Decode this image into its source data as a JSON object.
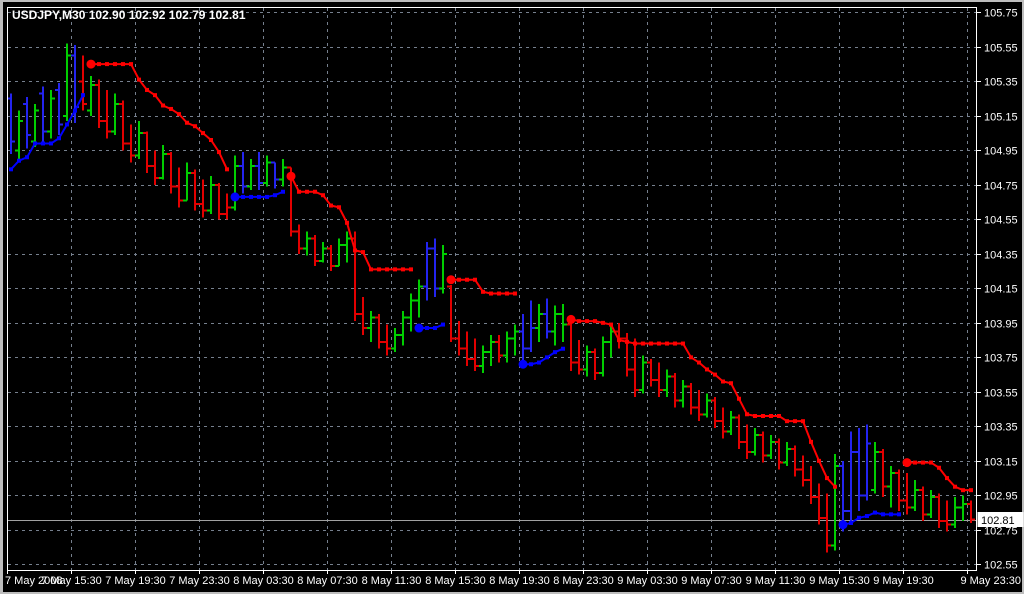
{
  "window": {
    "title_overlay": "USDJPY,M30  102.90 102.92 102.79 102.81"
  },
  "chart_data": {
    "type": "ohlc-bar-chart",
    "symbol": "USDJPY",
    "timeframe": "M30",
    "last_quote": {
      "open": "102.90",
      "high": "102.92",
      "low": "102.79",
      "close": "102.81"
    },
    "current_price": "102.81",
    "price_axis": {
      "max": 105.75,
      "min": 102.55,
      "step": 0.2,
      "labels": [
        "105.75",
        "105.55",
        "105.35",
        "105.15",
        "104.95",
        "104.75",
        "104.55",
        "104.35",
        "104.15",
        "103.95",
        "103.75",
        "103.55",
        "103.35",
        "103.15",
        "102.95",
        "102.75",
        "102.55"
      ]
    },
    "time_axis": {
      "bars_per_label": 8,
      "labels": [
        "7 May 2008",
        "7 May 15:30",
        "7 May 19:30",
        "7 May 23:30",
        "8 May 03:30",
        "8 May 07:30",
        "8 May 11:30",
        "8 May 15:30",
        "8 May 19:30",
        "8 May 23:30",
        "9 May 03:30",
        "9 May 07:30",
        "9 May 11:30",
        "9 May 15:30",
        "9 May 19:30",
        "9 May 23:30"
      ]
    },
    "palette": {
      "up": "#00CE00",
      "down": "#E30000",
      "down_alt": "#2424F0",
      "indicator_sell": "#FF0000",
      "indicator_buy": "#0000FF",
      "grid": "#76808E",
      "frame": "#FFFFFF",
      "text": "#FFFFFF",
      "bg": "#000000",
      "window_edge": "#BDBDBD",
      "price_line": "#A0A0A0",
      "price_box_bg": "#FFFFFF",
      "price_box_text": "#000000"
    },
    "bars": [
      [
        105.25,
        105.28,
        104.93,
        105.0,
        "b"
      ],
      [
        104.95,
        105.18,
        104.9,
        105.12,
        "g"
      ],
      [
        105.22,
        105.26,
        104.96,
        105.04,
        "b"
      ],
      [
        105.0,
        105.22,
        104.97,
        105.18,
        "g"
      ],
      [
        105.28,
        105.32,
        105.0,
        105.06,
        "b"
      ],
      [
        105.06,
        105.3,
        105.02,
        105.25,
        "g"
      ],
      [
        105.3,
        105.34,
        105.04,
        105.1,
        "b"
      ],
      [
        105.15,
        105.57,
        105.12,
        105.5,
        "g"
      ],
      [
        105.5,
        105.56,
        105.11,
        105.2,
        "b"
      ],
      [
        105.35,
        105.5,
        105.18,
        105.22,
        "r"
      ],
      [
        105.18,
        105.38,
        105.15,
        105.33,
        "g"
      ],
      [
        105.33,
        105.36,
        105.08,
        105.12,
        "r"
      ],
      [
        105.12,
        105.3,
        105.02,
        105.06,
        "r"
      ],
      [
        105.06,
        105.28,
        105.04,
        105.22,
        "g"
      ],
      [
        105.22,
        105.24,
        104.95,
        104.99,
        "r"
      ],
      [
        104.99,
        105.1,
        104.88,
        104.92,
        "r"
      ],
      [
        104.92,
        105.12,
        104.9,
        105.05,
        "g"
      ],
      [
        105.05,
        105.06,
        104.82,
        104.86,
        "r"
      ],
      [
        104.86,
        104.95,
        104.75,
        104.79,
        "r"
      ],
      [
        104.79,
        104.98,
        104.78,
        104.93,
        "g"
      ],
      [
        104.93,
        104.94,
        104.7,
        104.74,
        "r"
      ],
      [
        104.74,
        104.85,
        104.62,
        104.66,
        "r"
      ],
      [
        104.66,
        104.88,
        104.66,
        104.82,
        "g"
      ],
      [
        104.82,
        104.84,
        104.6,
        104.64,
        "r"
      ],
      [
        104.64,
        104.78,
        104.56,
        104.6,
        "r"
      ],
      [
        104.6,
        104.8,
        104.58,
        104.75,
        "g"
      ],
      [
        104.75,
        104.76,
        104.55,
        104.58,
        "r"
      ],
      [
        104.58,
        104.7,
        104.55,
        104.62,
        "r"
      ],
      [
        104.62,
        104.92,
        104.6,
        104.86,
        "g"
      ],
      [
        104.86,
        104.94,
        104.7,
        104.74,
        "b"
      ],
      [
        104.74,
        104.9,
        104.72,
        104.86,
        "g"
      ],
      [
        104.86,
        104.94,
        104.72,
        104.76,
        "b"
      ],
      [
        104.76,
        104.92,
        104.74,
        104.88,
        "g"
      ],
      [
        104.88,
        104.88,
        104.73,
        104.78,
        "b"
      ],
      [
        104.78,
        104.9,
        104.74,
        104.85,
        "g"
      ],
      [
        104.85,
        104.85,
        104.45,
        104.48,
        "r"
      ],
      [
        104.48,
        104.52,
        104.35,
        104.38,
        "r"
      ],
      [
        104.38,
        104.48,
        104.34,
        104.44,
        "g"
      ],
      [
        104.44,
        104.46,
        104.28,
        104.31,
        "r"
      ],
      [
        104.31,
        104.42,
        104.3,
        104.38,
        "g"
      ],
      [
        104.38,
        104.4,
        104.25,
        104.28,
        "r"
      ],
      [
        104.28,
        104.44,
        104.28,
        104.4,
        "g"
      ],
      [
        104.4,
        104.48,
        104.3,
        104.44,
        "g"
      ],
      [
        104.44,
        104.48,
        103.96,
        104.0,
        "r"
      ],
      [
        104.0,
        104.1,
        103.88,
        103.92,
        "r"
      ],
      [
        103.92,
        104.02,
        103.84,
        103.98,
        "g"
      ],
      [
        103.98,
        104.0,
        103.8,
        103.84,
        "r"
      ],
      [
        103.84,
        103.94,
        103.76,
        103.8,
        "r"
      ],
      [
        103.8,
        103.92,
        103.78,
        103.88,
        "g"
      ],
      [
        103.88,
        104.02,
        103.82,
        103.98,
        "g"
      ],
      [
        103.98,
        104.12,
        103.9,
        104.08,
        "g"
      ],
      [
        104.08,
        104.2,
        103.98,
        104.16,
        "g"
      ],
      [
        104.16,
        104.42,
        104.08,
        104.38,
        "b"
      ],
      [
        104.38,
        104.44,
        104.1,
        104.15,
        "b"
      ],
      [
        104.15,
        104.4,
        104.12,
        104.35,
        "g"
      ],
      [
        104.16,
        104.17,
        103.84,
        103.86,
        "r"
      ],
      [
        103.86,
        103.96,
        103.76,
        103.8,
        "r"
      ],
      [
        103.8,
        103.9,
        103.7,
        103.74,
        "r"
      ],
      [
        103.74,
        103.86,
        103.67,
        103.7,
        "r"
      ],
      [
        103.7,
        103.82,
        103.66,
        103.78,
        "g"
      ],
      [
        103.78,
        103.88,
        103.7,
        103.84,
        "g"
      ],
      [
        103.84,
        103.88,
        103.72,
        103.76,
        "r"
      ],
      [
        103.76,
        103.9,
        103.72,
        103.86,
        "g"
      ],
      [
        103.86,
        103.94,
        103.76,
        103.9,
        "g"
      ],
      [
        103.9,
        104.0,
        103.72,
        103.8,
        "b"
      ],
      [
        103.8,
        104.08,
        103.78,
        103.92,
        "b"
      ],
      [
        103.92,
        104.06,
        103.84,
        104.0,
        "g"
      ],
      [
        104.0,
        104.09,
        103.86,
        103.9,
        "b"
      ],
      [
        103.9,
        104.05,
        103.82,
        104.0,
        "g"
      ],
      [
        104.0,
        104.06,
        103.84,
        103.94,
        "g"
      ],
      [
        103.94,
        103.96,
        103.67,
        103.72,
        "r"
      ],
      [
        103.72,
        103.85,
        103.65,
        103.68,
        "r"
      ],
      [
        103.68,
        103.82,
        103.64,
        103.78,
        "g"
      ],
      [
        103.78,
        103.8,
        103.62,
        103.66,
        "r"
      ],
      [
        103.66,
        103.87,
        103.64,
        103.84,
        "g"
      ],
      [
        103.84,
        103.95,
        103.75,
        103.9,
        "g"
      ],
      [
        103.9,
        103.95,
        103.8,
        103.86,
        "r"
      ],
      [
        103.86,
        103.89,
        103.64,
        103.68,
        "r"
      ],
      [
        103.68,
        103.86,
        103.52,
        103.56,
        "r"
      ],
      [
        103.56,
        103.76,
        103.54,
        103.72,
        "g"
      ],
      [
        103.72,
        103.74,
        103.58,
        103.62,
        "r"
      ],
      [
        103.62,
        103.72,
        103.52,
        103.56,
        "r"
      ],
      [
        103.56,
        103.68,
        103.52,
        103.64,
        "g"
      ],
      [
        103.64,
        103.66,
        103.46,
        103.5,
        "r"
      ],
      [
        103.5,
        103.62,
        103.46,
        103.58,
        "g"
      ],
      [
        103.58,
        103.6,
        103.42,
        103.46,
        "r"
      ],
      [
        103.46,
        103.56,
        103.38,
        103.42,
        "r"
      ],
      [
        103.42,
        103.54,
        103.4,
        103.5,
        "g"
      ],
      [
        103.5,
        103.52,
        103.34,
        103.38,
        "r"
      ],
      [
        103.38,
        103.46,
        103.28,
        103.32,
        "r"
      ],
      [
        103.32,
        103.44,
        103.3,
        103.4,
        "g"
      ],
      [
        103.4,
        103.42,
        103.22,
        103.26,
        "r"
      ],
      [
        103.26,
        103.36,
        103.16,
        103.2,
        "r"
      ],
      [
        103.2,
        103.34,
        103.18,
        103.3,
        "g"
      ],
      [
        103.3,
        103.32,
        103.14,
        103.18,
        "r"
      ],
      [
        103.18,
        103.3,
        103.16,
        103.26,
        "g"
      ],
      [
        103.26,
        103.28,
        103.1,
        103.14,
        "r"
      ],
      [
        103.14,
        103.26,
        103.12,
        103.22,
        "g"
      ],
      [
        103.22,
        103.24,
        103.06,
        103.1,
        "r"
      ],
      [
        103.1,
        103.18,
        103.0,
        103.04,
        "r"
      ],
      [
        103.04,
        103.12,
        102.9,
        102.94,
        "r"
      ],
      [
        102.94,
        103.02,
        102.78,
        102.82,
        "r"
      ],
      [
        102.82,
        102.96,
        102.62,
        102.66,
        "r"
      ],
      [
        102.66,
        103.19,
        102.63,
        103.12,
        "g"
      ],
      [
        103.12,
        103.15,
        102.74,
        102.86,
        "b"
      ],
      [
        102.86,
        103.32,
        102.8,
        103.2,
        "b"
      ],
      [
        103.2,
        103.34,
        102.86,
        102.95,
        "b"
      ],
      [
        102.95,
        103.36,
        102.92,
        103.25,
        "b"
      ],
      [
        102.98,
        103.26,
        102.96,
        103.2,
        "g"
      ],
      [
        103.2,
        103.22,
        102.94,
        103.0,
        "r"
      ],
      [
        103.0,
        103.12,
        102.88,
        103.08,
        "g"
      ],
      [
        103.08,
        103.1,
        102.86,
        102.92,
        "r"
      ],
      [
        102.92,
        103.08,
        102.84,
        102.88,
        "r"
      ],
      [
        102.88,
        103.04,
        102.86,
        102.98,
        "g"
      ],
      [
        102.98,
        103.0,
        102.8,
        102.84,
        "r"
      ],
      [
        102.84,
        102.98,
        102.82,
        102.94,
        "g"
      ],
      [
        102.94,
        102.96,
        102.76,
        102.8,
        "r"
      ],
      [
        102.8,
        102.92,
        102.74,
        102.78,
        "r"
      ],
      [
        102.78,
        102.94,
        102.76,
        102.88,
        "g"
      ],
      [
        102.88,
        102.95,
        102.8,
        102.9,
        "g"
      ],
      [
        102.9,
        102.92,
        102.79,
        102.81,
        "r"
      ]
    ],
    "indicator_segments": [
      {
        "side": "buy",
        "start": 0,
        "signal_dot": false,
        "values": [
          104.84,
          104.89,
          104.91,
          104.99,
          104.99,
          104.99,
          105.02,
          105.1,
          105.18,
          105.27
        ]
      },
      {
        "side": "sell",
        "start": 10,
        "signal_dot": true,
        "values": [
          105.45,
          105.45,
          105.45,
          105.45,
          105.45,
          105.45,
          105.36,
          105.3,
          105.27,
          105.21,
          105.19,
          105.16,
          105.11,
          105.09,
          105.05,
          105.01,
          104.94,
          104.84
        ]
      },
      {
        "side": "buy",
        "start": 28,
        "signal_dot": true,
        "values": [
          104.68,
          104.68,
          104.68,
          104.68,
          104.68,
          104.69,
          104.71
        ]
      },
      {
        "side": "sell",
        "start": 35,
        "signal_dot": true,
        "values": [
          104.8,
          104.71,
          104.71,
          104.71,
          104.69,
          104.63,
          104.62,
          104.53,
          104.37,
          104.36,
          104.26,
          104.26,
          104.26,
          104.26,
          104.26,
          104.26
        ]
      },
      {
        "side": "buy",
        "start": 51,
        "signal_dot": true,
        "values": [
          103.92,
          103.92,
          103.92,
          103.94
        ]
      },
      {
        "side": "sell",
        "start": 55,
        "signal_dot": true,
        "values": [
          104.2,
          104.2,
          104.2,
          104.2,
          104.13,
          104.12,
          104.12,
          104.12,
          104.12
        ]
      },
      {
        "side": "buy",
        "start": 64,
        "signal_dot": true,
        "values": [
          103.71,
          103.71,
          103.72,
          103.75,
          103.78,
          103.8
        ]
      },
      {
        "side": "sell",
        "start": 70,
        "signal_dot": true,
        "values": [
          103.97,
          103.96,
          103.96,
          103.96,
          103.95,
          103.94,
          103.85,
          103.84,
          103.83,
          103.83,
          103.83,
          103.83,
          103.83,
          103.83,
          103.83,
          103.75,
          103.72,
          103.68,
          103.65,
          103.61,
          103.6,
          103.51,
          103.42,
          103.41,
          103.41,
          103.41,
          103.41,
          103.38,
          103.38,
          103.38,
          103.26,
          103.15,
          103.05,
          103.0
        ]
      },
      {
        "side": "buy",
        "start": 104,
        "signal_dot": true,
        "values": [
          102.78,
          102.79,
          102.82,
          102.83,
          102.85,
          102.84,
          102.84,
          102.84
        ]
      },
      {
        "side": "sell",
        "start": 112,
        "signal_dot": true,
        "values": [
          103.14,
          103.14,
          103.14,
          103.14,
          103.11,
          103.05,
          103.0,
          102.98,
          102.98
        ]
      }
    ]
  }
}
